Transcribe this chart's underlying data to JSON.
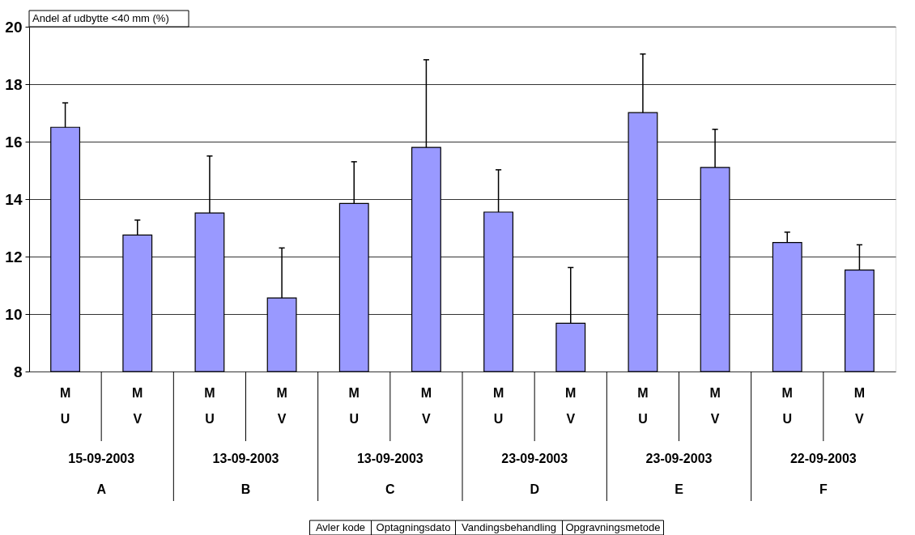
{
  "chart_data": {
    "type": "bar",
    "ylabel": "Andel af udbytte <40 mm (%)",
    "categories": [
      "M\nU",
      "M\nV",
      "M\nU",
      "M\nV",
      "M\nU",
      "M\nV",
      "M\nU",
      "M\nV",
      "M\nU",
      "M\nV",
      "M\nU",
      "M\nV"
    ],
    "values": [
      16.5,
      12.75,
      13.52,
      10.56,
      13.85,
      15.8,
      13.55,
      9.68,
      17.01,
      15.1,
      12.49,
      11.53
    ],
    "errors": [
      [
        16.5,
        17.35
      ],
      [
        12.75,
        13.27
      ],
      [
        13.52,
        15.5
      ],
      [
        10.56,
        12.3
      ],
      [
        13.85,
        15.3
      ],
      [
        15.8,
        18.85
      ],
      [
        13.55,
        15.02
      ],
      [
        9.68,
        11.62
      ],
      [
        17.01,
        19.05
      ],
      [
        15.1,
        16.43
      ],
      [
        12.49,
        12.85
      ],
      [
        11.53,
        12.41
      ]
    ],
    "color": "#9999ff",
    "ylim": [
      8,
      20
    ],
    "yticks": [
      8,
      10,
      12,
      14,
      16,
      18,
      20
    ],
    "grid": "y",
    "annotations": [
      "15-09-2003",
      "13-09-2003",
      "13-09-2003",
      "23-09-2003",
      "23-09-2003",
      "22-09-2003",
      "A",
      "B",
      "C",
      "D",
      "E",
      "F",
      "Avler kode",
      "Optagningsdato",
      "Vandingsbehandling",
      "Opgravningsmetode"
    ]
  }
}
